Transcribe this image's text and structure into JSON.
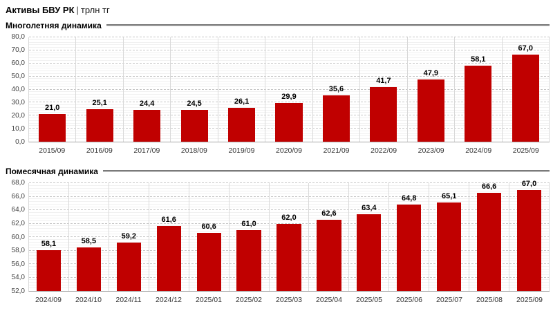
{
  "header": {
    "title": "Активы БВУ РК",
    "separator": "|",
    "unit": "трлн тг"
  },
  "colors": {
    "bar": "#c00000",
    "grid_major": "#c6c6c6",
    "grid_minor": "#f1f1f1",
    "axis_baseline": "#a6a6a6",
    "column_divider": "#d9d9d9",
    "section_rule": "#7a7a7a"
  },
  "chart_data": [
    {
      "type": "bar",
      "title": "Многолетняя динамика",
      "categories": [
        "2015/09",
        "2016/09",
        "2017/09",
        "2018/09",
        "2019/09",
        "2020/09",
        "2021/09",
        "2022/09",
        "2023/09",
        "2024/09",
        "2025/09"
      ],
      "values": [
        21.0,
        25.1,
        24.4,
        24.5,
        26.1,
        29.9,
        35.6,
        41.7,
        47.9,
        58.1,
        67.0
      ],
      "data_labels": [
        "21,0",
        "25,1",
        "24,4",
        "24,5",
        "26,1",
        "29,9",
        "35,6",
        "41,7",
        "47,9",
        "58,1",
        "67,0"
      ],
      "ylim": [
        0,
        80
      ],
      "ytick_step": 10,
      "ytick_labels": [
        "0,0",
        "10,0",
        "20,0",
        "30,0",
        "40,0",
        "50,0",
        "60,0",
        "70,0",
        "80,0"
      ],
      "grid": true,
      "legend": "none",
      "xlabel": "",
      "ylabel": ""
    },
    {
      "type": "bar",
      "title": "Помесячная динамика",
      "categories": [
        "2024/09",
        "2024/10",
        "2024/11",
        "2024/12",
        "2025/01",
        "2025/02",
        "2025/03",
        "2025/04",
        "2025/05",
        "2025/06",
        "2025/07",
        "2025/08",
        "2025/09"
      ],
      "values": [
        58.1,
        58.5,
        59.2,
        61.6,
        60.6,
        61.0,
        62.0,
        62.6,
        63.4,
        64.8,
        65.1,
        66.6,
        67.0
      ],
      "data_labels": [
        "58,1",
        "58,5",
        "59,2",
        "61,6",
        "60,6",
        "61,0",
        "62,0",
        "62,6",
        "63,4",
        "64,8",
        "65,1",
        "66,6",
        "67,0"
      ],
      "ylim": [
        52,
        68
      ],
      "ytick_step": 2,
      "ytick_labels": [
        "52,0",
        "54,0",
        "56,0",
        "58,0",
        "60,0",
        "62,0",
        "64,0",
        "66,0",
        "68,0"
      ],
      "grid": true,
      "legend": "none",
      "xlabel": "",
      "ylabel": ""
    }
  ]
}
